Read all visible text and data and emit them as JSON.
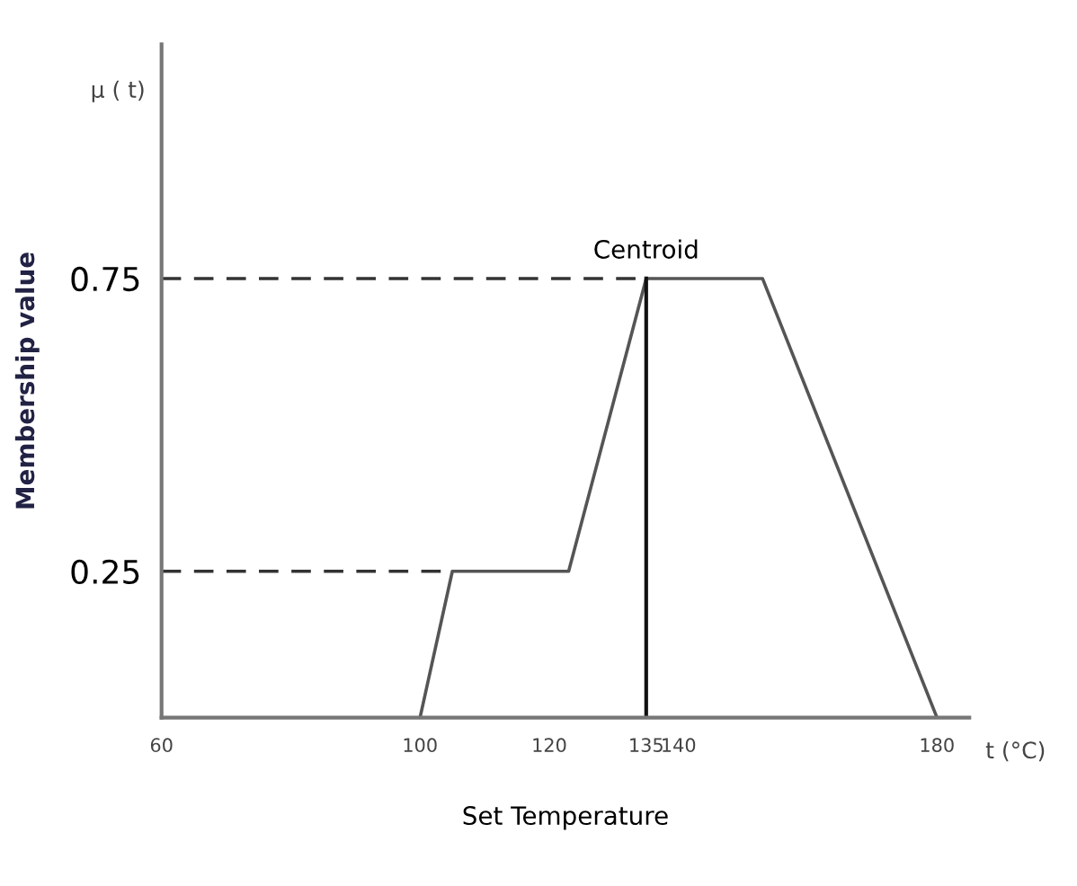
{
  "chart_data": {
    "type": "line",
    "xlabel": "Set Temperature",
    "ylabel": "Membership value",
    "x": [
      100,
      105,
      123,
      135,
      153,
      180
    ],
    "series": [
      {
        "color": "#555555",
        "values": [
          0,
          0.25,
          0.25,
          0.75,
          0.75,
          0
        ]
      }
    ],
    "xlim": [
      60,
      185
    ],
    "xticks": [
      60,
      100,
      120,
      135,
      140,
      180
    ],
    "ylim": [
      0,
      1.15
    ],
    "yticks": [
      0.25,
      0.75
    ],
    "ref_lines": [
      {
        "axis": "y",
        "value": 0.25,
        "line_style": "dashed",
        "color": "#333333"
      },
      {
        "axis": "y",
        "value": 0.75,
        "line_style": "dashed",
        "color": "#333333"
      },
      {
        "axis": "x",
        "value": 135,
        "line_style": "solid",
        "color": "#111111"
      }
    ],
    "annotations": [
      {
        "text": "Centroid",
        "x": 135,
        "y": 0.75
      },
      "t (°C)",
      "μ ( t)"
    ],
    "grid": false,
    "legend": false,
    "marker": "none",
    "line_style": "solid"
  }
}
